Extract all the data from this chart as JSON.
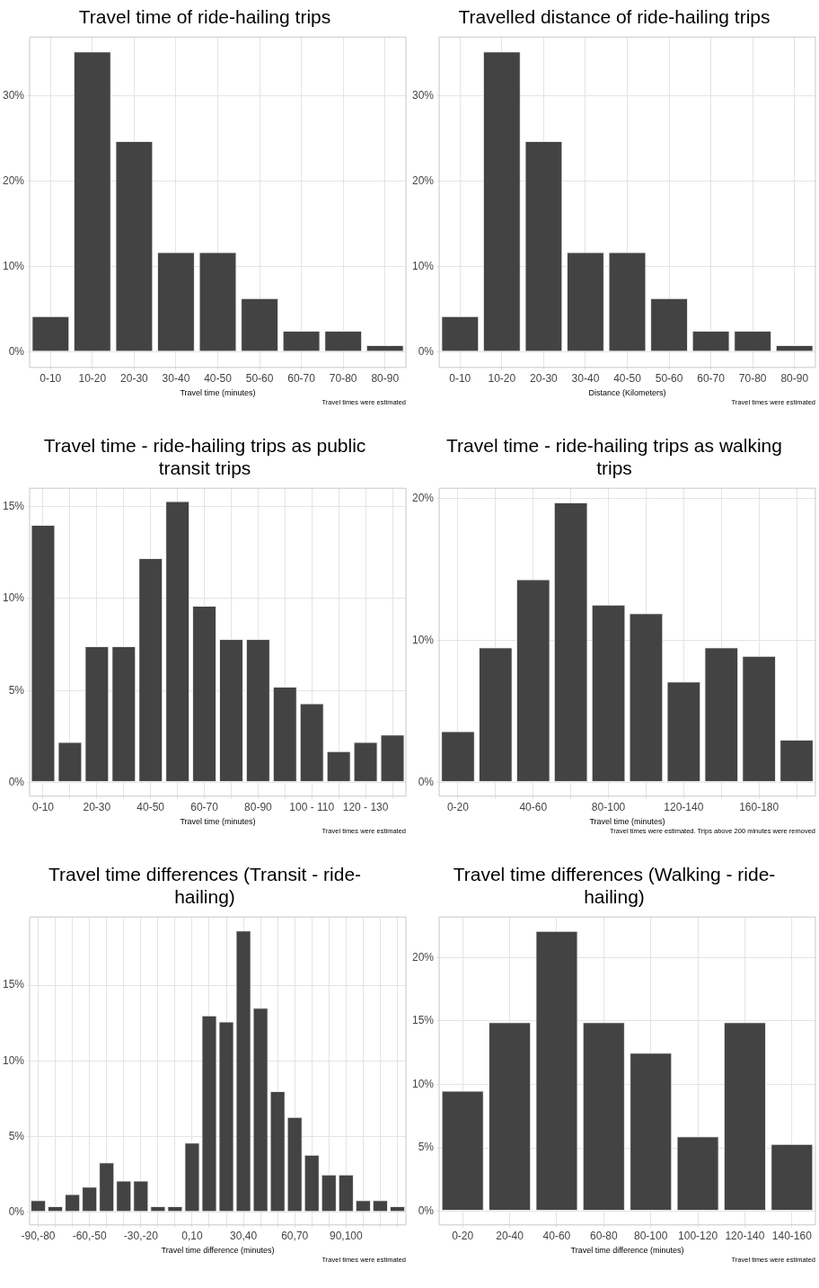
{
  "chart_data": [
    {
      "type": "bar",
      "title": "Travel time of ride-hailing trips",
      "xlabel": "Travel time (minutes)",
      "annotations": [
        "Travel times were estimated"
      ],
      "categories": [
        "0-10",
        "10-20",
        "20-30",
        "30-40",
        "40-50",
        "50-60",
        "60-70",
        "70-80",
        "80-90"
      ],
      "values": [
        4.2,
        35.2,
        24.7,
        11.7,
        11.7,
        6.3,
        2.5,
        2.5,
        0.8
      ],
      "color": "#434343",
      "ylim": [
        -1.8,
        36.9
      ],
      "yticks": [
        {
          "value": 0,
          "label": "0%"
        },
        {
          "value": 10,
          "label": "10%"
        },
        {
          "value": 20,
          "label": "20%"
        },
        {
          "value": 30,
          "label": "30%"
        }
      ],
      "grid": true,
      "legend": false
    },
    {
      "type": "bar",
      "title": "Travelled distance of ride-hailing trips",
      "xlabel": "Distance (Kilometers)",
      "annotations": [
        "Travel times were estimated"
      ],
      "categories": [
        "0-10",
        "10-20",
        "20-30",
        "30-40",
        "40-50",
        "50-60",
        "60-70",
        "70-80",
        "80-90"
      ],
      "values": [
        4.2,
        35.2,
        24.7,
        11.7,
        11.7,
        6.3,
        2.5,
        2.5,
        0.8
      ],
      "color": "#434343",
      "ylim": [
        -1.8,
        36.9
      ],
      "yticks": [
        {
          "value": 0,
          "label": "0%"
        },
        {
          "value": 10,
          "label": "10%"
        },
        {
          "value": 20,
          "label": "20%"
        },
        {
          "value": 30,
          "label": "30%"
        }
      ],
      "grid": true,
      "legend": false
    },
    {
      "type": "bar",
      "title": "Travel time - ride-hailing trips as public transit trips",
      "xlabel": "Travel time (minutes)",
      "annotations": [
        "Travel times were estimated"
      ],
      "categories": [
        "0-10",
        null,
        "20-30",
        null,
        "40-50",
        null,
        "60-70",
        null,
        "80-90",
        null,
        "100 - 110",
        null,
        "120 - 130",
        null
      ],
      "values": [
        14.0,
        2.2,
        7.4,
        7.4,
        12.2,
        15.3,
        9.6,
        7.8,
        7.8,
        5.2,
        4.3,
        1.7,
        2.2,
        2.6
      ],
      "color": "#434343",
      "ylim": [
        -0.75,
        16.0
      ],
      "yticks": [
        {
          "value": 0,
          "label": "0%"
        },
        {
          "value": 5,
          "label": "5%"
        },
        {
          "value": 10,
          "label": "10%"
        },
        {
          "value": 15,
          "label": "15%"
        }
      ],
      "grid": true,
      "legend": false
    },
    {
      "type": "bar",
      "title": "Travel time - ride-hailing trips as walking trips",
      "xlabel": "Travel time (minutes)",
      "annotations": [
        "Travel times were estimated. Trips above 200 minutes were removed"
      ],
      "categories": [
        "0-20",
        null,
        "40-60",
        null,
        "80-100",
        null,
        "120-140",
        null,
        "160-180",
        null
      ],
      "values": [
        3.6,
        9.5,
        14.3,
        19.7,
        12.5,
        11.9,
        7.1,
        9.5,
        8.9,
        3.0
      ],
      "color": "#434343",
      "ylim": [
        -0.97,
        20.7
      ],
      "yticks": [
        {
          "value": 0,
          "label": "0%"
        },
        {
          "value": 10,
          "label": "10%"
        },
        {
          "value": 20,
          "label": "20%"
        }
      ],
      "grid": true,
      "legend": false
    },
    {
      "type": "bar",
      "title": "Travel time differences (Transit - ride-hailing)",
      "xlabel": "Travel time difference (minutes)",
      "annotations": [
        "Travel times were estimated"
      ],
      "categories": [
        "-90,-80",
        null,
        null,
        "-60,-50",
        null,
        null,
        "-30,-20",
        null,
        null,
        "0,10",
        null,
        null,
        "30,40",
        null,
        null,
        "60,70",
        null,
        null,
        "90,100",
        null,
        null,
        null
      ],
      "values": [
        0.8,
        0.4,
        1.2,
        1.7,
        3.3,
        2.1,
        2.1,
        0.4,
        0.4,
        4.6,
        13.0,
        12.6,
        18.6,
        13.5,
        8.0,
        6.3,
        3.8,
        2.5,
        2.5,
        0.8,
        0.8,
        0.4
      ],
      "color": "#434343",
      "ylim": [
        -0.83,
        19.5
      ],
      "yticks": [
        {
          "value": 0,
          "label": "0%"
        },
        {
          "value": 5,
          "label": "5%"
        },
        {
          "value": 10,
          "label": "10%"
        },
        {
          "value": 15,
          "label": "15%"
        }
      ],
      "grid": true,
      "legend": false
    },
    {
      "type": "bar",
      "title": "Travel time differences (Walking - ride-hailing)",
      "xlabel": "Travel time difference (minutes)",
      "annotations": [
        "Travel times were estimated"
      ],
      "categories": [
        "0-20",
        "20-40",
        "40-60",
        "60-80",
        "80-100",
        "100-120",
        "120-140",
        "140-160"
      ],
      "values": [
        9.5,
        14.9,
        22.1,
        14.9,
        12.5,
        5.9,
        14.9,
        5.3
      ],
      "color": "#434343",
      "ylim": [
        -1.08,
        23.2
      ],
      "yticks": [
        {
          "value": 0,
          "label": "0%"
        },
        {
          "value": 5,
          "label": "5%"
        },
        {
          "value": 10,
          "label": "10%"
        },
        {
          "value": 15,
          "label": "15%"
        },
        {
          "value": 20,
          "label": "20%"
        }
      ],
      "grid": true,
      "legend": false
    }
  ]
}
